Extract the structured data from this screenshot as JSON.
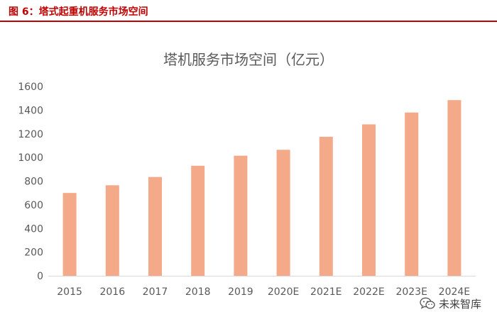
{
  "figure": {
    "caption": "图 6：塔式起重机服务市场空间"
  },
  "watermark": {
    "icon": "wechat-icon",
    "text": "未来智库"
  },
  "colors": {
    "bar": "#f4a988",
    "caption": "#c00000",
    "axis": "#d9d9d9",
    "text": "#595959"
  },
  "chart_data": {
    "type": "bar",
    "title": "塔机服务市场空间（亿元）",
    "xlabel": "",
    "ylabel": "",
    "categories": [
      "2015",
      "2016",
      "2017",
      "2018",
      "2019",
      "2020E",
      "2021E",
      "2022E",
      "2023E",
      "2024E"
    ],
    "values": [
      700,
      765,
      835,
      930,
      1015,
      1065,
      1175,
      1280,
      1380,
      1485
    ],
    "ylim": [
      0,
      1600
    ],
    "yticks": [
      "0",
      "200",
      "400",
      "600",
      "800",
      "1000",
      "1200",
      "1400",
      "1600"
    ],
    "grid": false,
    "legend": "none"
  }
}
